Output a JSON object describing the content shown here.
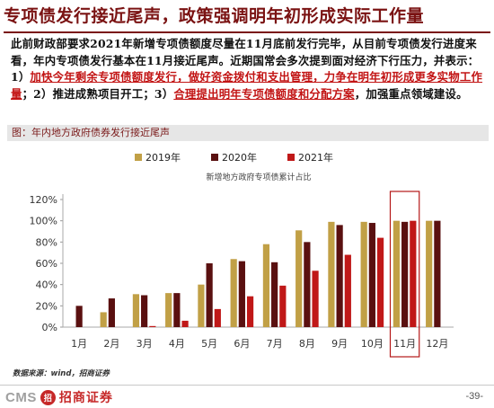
{
  "title": "专项债发行接近尾声，政策强调明年初形成实际工作量",
  "paragraph": {
    "s1": "此前财政部要求2021年新增专项债额度尽量在11月底前发行完毕，从目前专项债发行进度来看，年内专项债发行基本在11月接近尾声。近期国常会多次提到面对经济下行压力，并表示：1）",
    "hl1": "加快今年剩余专项债额度发行，做好资金拨付和支出管理，力争在明年初形成更多实物工作量",
    "s2": "；2）推进成熟项目开工；3）",
    "hl2": "合理提出明年专项债额度和分配方案",
    "s3": "，加强重点领域建设。"
  },
  "chart_header": "图：年内地方政府债券发行接近尾声",
  "source": "数据来源：wind，招商证券",
  "footer": {
    "logo_text": "CMS",
    "logo_mark": "招",
    "logo_cn": "招商证券",
    "page": "-39-"
  },
  "chart_data": {
    "type": "bar",
    "title": "新增地方政府专项债累计占比",
    "categories": [
      "1月",
      "2月",
      "3月",
      "4月",
      "5月",
      "6月",
      "7月",
      "8月",
      "9月",
      "10月",
      "11月",
      "12月"
    ],
    "series": [
      {
        "name": "2019年",
        "color": "#c1a046",
        "values": [
          0,
          14,
          31,
          32,
          40,
          64,
          78,
          91,
          99,
          99,
          100,
          100
        ]
      },
      {
        "name": "2020年",
        "color": "#5a1010",
        "values": [
          20,
          27,
          30,
          32,
          60,
          62,
          61,
          80,
          96,
          98,
          99,
          100
        ]
      },
      {
        "name": "2021年",
        "color": "#c01818",
        "values": [
          0,
          0,
          1,
          6,
          17,
          29,
          39,
          53,
          68,
          84,
          100,
          null
        ]
      }
    ],
    "ylim": [
      0,
      120
    ],
    "yticks": [
      0,
      20,
      40,
      60,
      80,
      100,
      120
    ],
    "tick_format": "%",
    "highlight_category": "11月",
    "highlight_color": "#b51818",
    "legend_position": "top"
  }
}
